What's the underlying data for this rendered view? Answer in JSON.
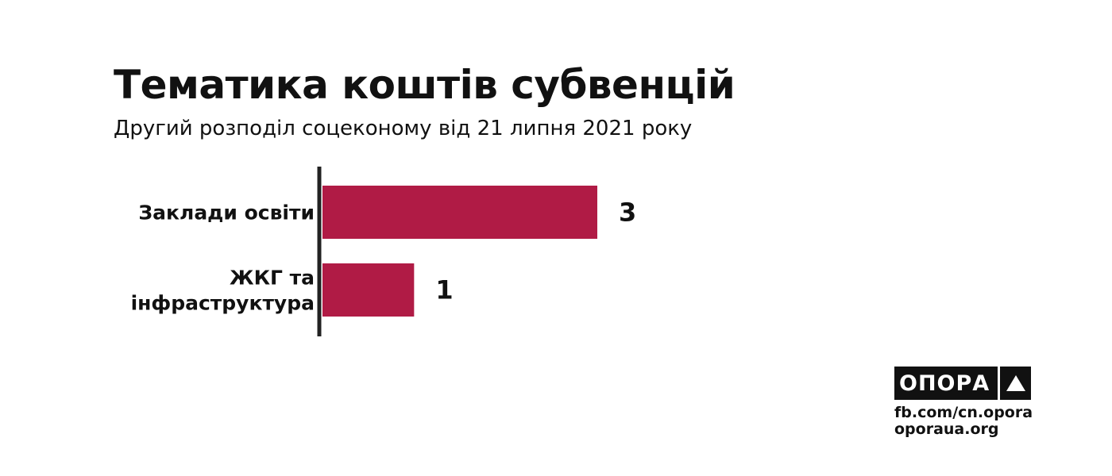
{
  "header": {
    "title": "Тематика коштів субвенцій",
    "subtitle": "Другий розподіл соцеконому від 21 липня 2021 року"
  },
  "chart_data": {
    "type": "bar",
    "orientation": "horizontal",
    "categories": [
      [
        "Заклади освіти"
      ],
      [
        "ЖКГ та",
        "інфраструктура"
      ]
    ],
    "values": [
      3,
      1
    ],
    "value_labels": [
      "3",
      "1"
    ],
    "bar_color": "#B01B45",
    "axis_color": "#222222",
    "xlim": [
      0,
      3
    ],
    "grid": false,
    "legend": "none"
  },
  "branding": {
    "logo_text": "ОПОРА",
    "logo_icon": "triangle-up-icon",
    "links": [
      "fb.com/cn.opora",
      "oporaua.org"
    ]
  }
}
